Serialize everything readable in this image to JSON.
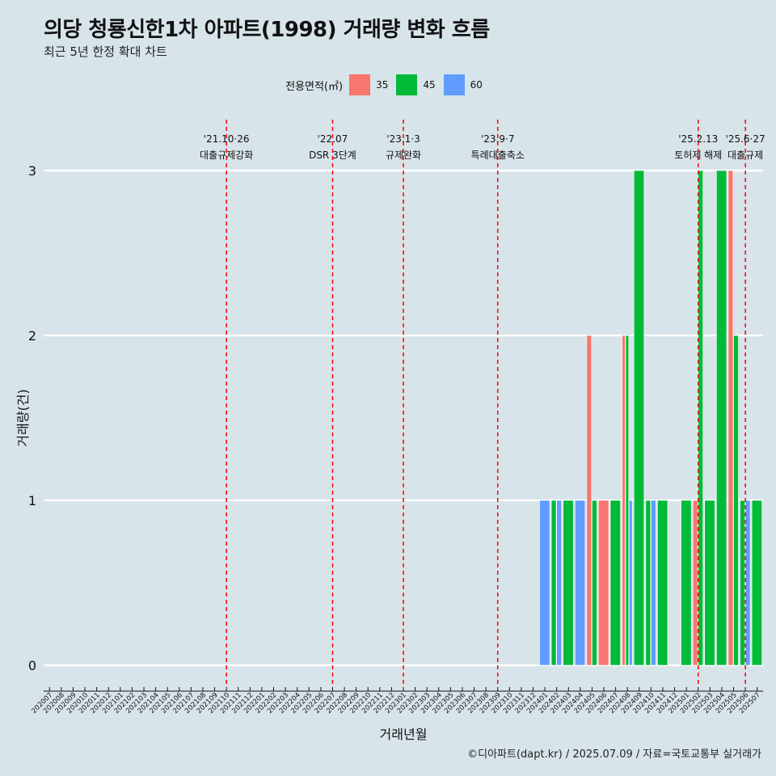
{
  "title": "의당 청룡신한1차 아파트(1998) 거래량 변화 흐름",
  "subtitle": "최근 5년 한정 확대 차트",
  "legend": {
    "title": "전용면적(㎡)",
    "items": [
      {
        "label": "35",
        "color": "#f8766d"
      },
      {
        "label": "45",
        "color": "#00ba38"
      },
      {
        "label": "60",
        "color": "#619cff"
      }
    ]
  },
  "caption": "©디아파트(dapt.kr) / 2025.07.09 / 자료=국토교통부 실거래가",
  "chart_data": {
    "type": "bar",
    "xlabel": "거래년월",
    "ylabel": "거래량(건)",
    "ylim": [
      0,
      3
    ],
    "yticks": [
      0,
      1,
      2,
      3
    ],
    "grid": true,
    "legend_position": "top",
    "categories": [
      "202007",
      "202008",
      "202009",
      "202010",
      "202011",
      "202012",
      "202101",
      "202102",
      "202103",
      "202104",
      "202105",
      "202106",
      "202107",
      "202108",
      "202109",
      "202110",
      "202111",
      "202112",
      "202201",
      "202202",
      "202203",
      "202204",
      "202205",
      "202206",
      "202207",
      "202208",
      "202209",
      "202210",
      "202211",
      "202212",
      "202301",
      "202302",
      "202303",
      "202304",
      "202305",
      "202306",
      "202307",
      "202308",
      "202309",
      "202310",
      "202311",
      "202312",
      "202401",
      "202402",
      "202403",
      "202404",
      "202405",
      "202406",
      "202407",
      "202408",
      "202409",
      "202410",
      "202411",
      "202412",
      "202501",
      "202502",
      "202503",
      "202504",
      "202505",
      "202506",
      "202507"
    ],
    "series": [
      {
        "name": "35",
        "color": "#f8766d",
        "values": [
          0,
          0,
          0,
          0,
          0,
          0,
          0,
          0,
          0,
          0,
          0,
          0,
          0,
          0,
          0,
          0,
          0,
          0,
          0,
          0,
          0,
          0,
          0,
          0,
          0,
          0,
          0,
          0,
          0,
          0,
          0,
          0,
          0,
          0,
          0,
          0,
          0,
          0,
          0,
          0,
          0,
          0,
          0,
          0,
          0,
          0,
          2,
          1,
          0,
          2,
          0,
          0,
          0,
          0,
          0,
          1,
          0,
          0,
          3,
          0,
          0
        ]
      },
      {
        "name": "45",
        "color": "#00ba38",
        "values": [
          0,
          0,
          0,
          0,
          0,
          0,
          0,
          0,
          0,
          0,
          0,
          0,
          0,
          0,
          0,
          0,
          0,
          0,
          0,
          0,
          0,
          0,
          0,
          0,
          0,
          0,
          0,
          0,
          0,
          0,
          0,
          0,
          0,
          0,
          0,
          0,
          0,
          0,
          0,
          0,
          0,
          0,
          0,
          1,
          1,
          0,
          1,
          0,
          1,
          2,
          3,
          1,
          1,
          0,
          1,
          3,
          1,
          3,
          2,
          1,
          1
        ]
      },
      {
        "name": "60",
        "color": "#619cff",
        "values": [
          0,
          0,
          0,
          0,
          0,
          0,
          0,
          0,
          0,
          0,
          0,
          0,
          0,
          0,
          0,
          0,
          0,
          0,
          0,
          0,
          0,
          0,
          0,
          0,
          0,
          0,
          0,
          0,
          0,
          0,
          0,
          0,
          0,
          0,
          0,
          0,
          0,
          0,
          0,
          0,
          0,
          0,
          1,
          1,
          0,
          1,
          0,
          0,
          0,
          1,
          0,
          1,
          0,
          0,
          0,
          0,
          0,
          0,
          0,
          1,
          0
        ]
      }
    ],
    "annotations": [
      {
        "x": "202110",
        "date": "'21.10·26",
        "label": "대출규제강화"
      },
      {
        "x": "202207",
        "date": "'22.07",
        "label": "DSR 3단계"
      },
      {
        "x": "202301",
        "date": "'23.1·3",
        "label": "규제완화"
      },
      {
        "x": "202309",
        "date": "'23.9·7",
        "label": "특례대출축소"
      },
      {
        "x": "202502",
        "date": "'25.2.13",
        "label": "토허제 해제"
      },
      {
        "x": "202506",
        "date": "'25.6·27",
        "label": "대출규제"
      }
    ],
    "annotation_color": "#ff0000"
  }
}
